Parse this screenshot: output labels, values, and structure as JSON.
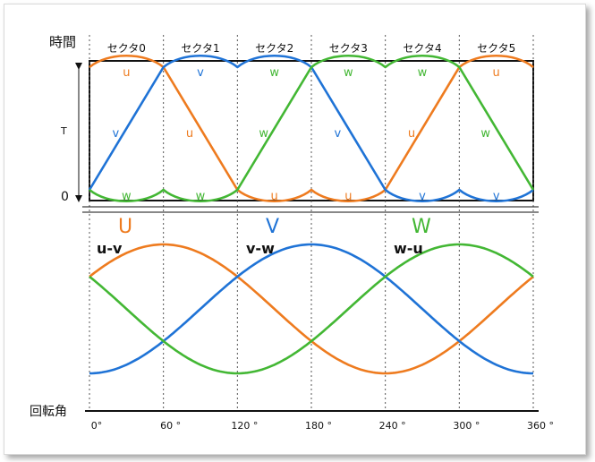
{
  "colors": {
    "u": "#ee7b1f",
    "v": "#1f73d6",
    "w": "#43b734",
    "frame": "#111111",
    "grid": "#555555"
  },
  "labels": {
    "time_axis": "時間",
    "time_T": "T",
    "time_zero": "0",
    "angle_axis": "回転角"
  },
  "sectors": [
    "セクタ0",
    "セクタ1",
    "セクタ2",
    "セクタ3",
    "セクタ4",
    "セクタ5"
  ],
  "angle_ticks": [
    "0°",
    "60 °",
    "120 °",
    "180 °",
    "240 °",
    "300 °",
    "360 °"
  ],
  "phase_labels": {
    "U": "U",
    "V": "V",
    "W": "W",
    "uv": "u-v",
    "vw": "v-w",
    "wu": "w-u"
  },
  "curve_labels": [
    [
      "u",
      "v",
      "w",
      "w",
      "w",
      "u"
    ],
    [
      "v",
      "u",
      "w",
      "v",
      "u",
      "w"
    ],
    [
      "w",
      "w",
      "u",
      "u",
      "v",
      "v"
    ]
  ],
  "chart_data": {
    "type": "line",
    "x_range": [
      0,
      360
    ],
    "x_ticks": [
      0,
      60,
      120,
      180,
      240,
      300,
      360
    ],
    "charts": [
      {
        "name": "timing",
        "series_colors": [
          "u",
          "v",
          "w"
        ],
        "y_labels": [
          "0",
          "T"
        ]
      },
      {
        "name": "line_voltage",
        "series": [
          {
            "name": "u-v",
            "label": "U",
            "color": "u",
            "phase_offset_deg": 30
          },
          {
            "name": "v-w",
            "label": "V",
            "color": "v",
            "phase_offset_deg": -90
          },
          {
            "name": "w-u",
            "label": "W",
            "color": "w",
            "phase_offset_deg": 150
          }
        ]
      }
    ]
  }
}
